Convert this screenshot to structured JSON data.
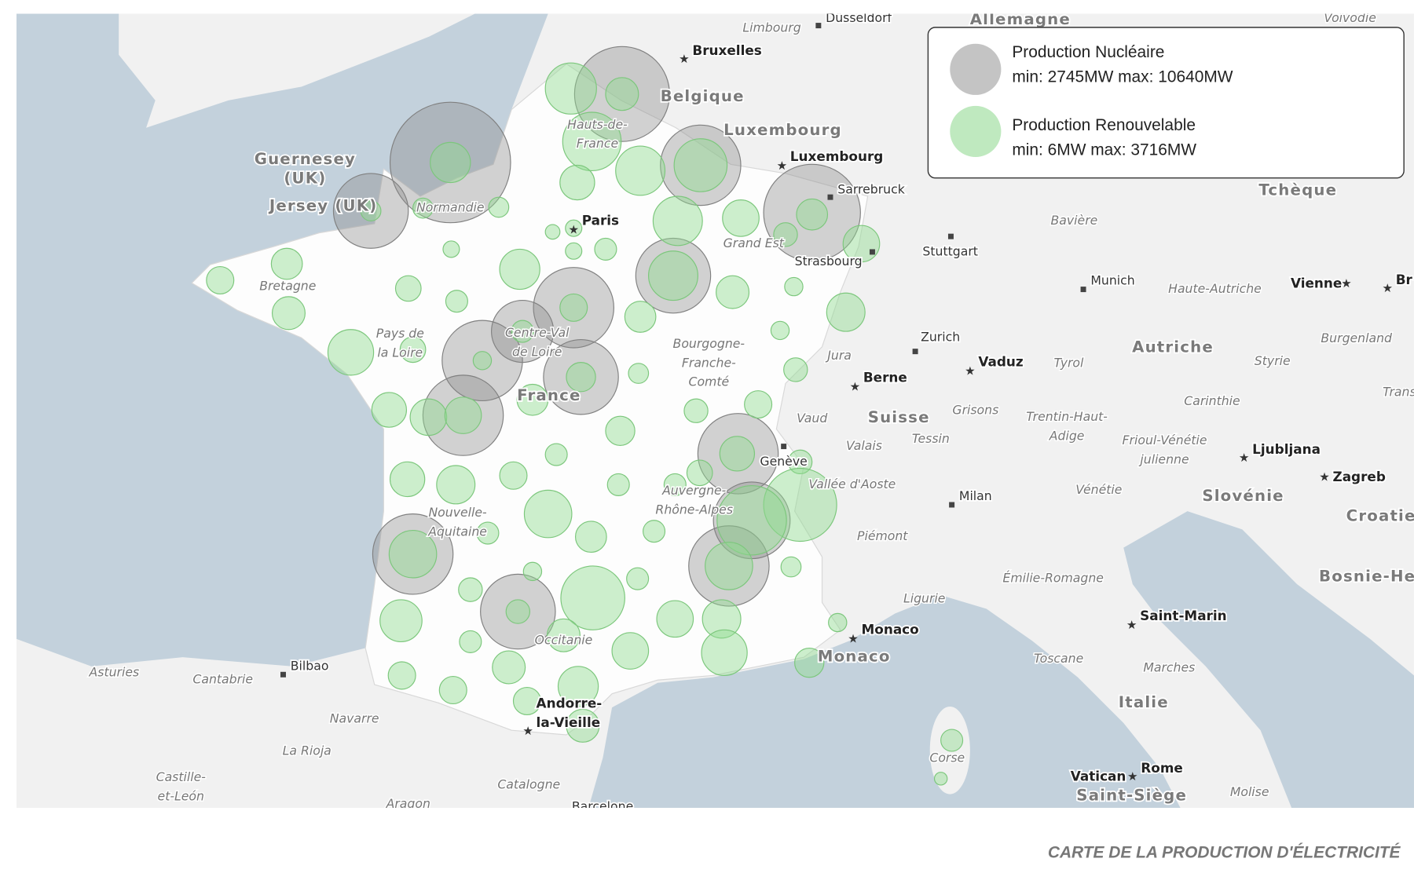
{
  "legend": {
    "items": [
      {
        "name": "Production Nucléaire",
        "range": "min: 2745MW max: 10640MW"
      },
      {
        "name": "Production Renouvelable",
        "range": "min: 6MW max: 3716MW"
      }
    ]
  },
  "caption": "CARTE DE LA PRODUCTION D'ÉLECTRICITÉ",
  "map": {
    "countries": [
      [
        "Allemagne"
      ],
      [
        "Belgique"
      ],
      [
        "Luxembourg"
      ],
      [
        "France"
      ],
      [
        "Suisse"
      ],
      [
        "Autriche"
      ],
      [
        "Tchèque"
      ],
      [
        "Italie"
      ],
      [
        "Slovénie"
      ],
      [
        "Croatie"
      ],
      [
        "Bosnie-He"
      ],
      [
        "Monaco"
      ],
      [
        "Saint-Siège"
      ],
      [
        "Guernesey",
        "(UK)"
      ],
      [
        "Jersey (UK)"
      ]
    ],
    "capitals": [
      [
        "Bruxelles"
      ],
      [
        "Luxembourg"
      ],
      [
        "Paris"
      ],
      [
        "Berne"
      ],
      [
        "Vaduz"
      ],
      [
        "Ljubljana"
      ],
      [
        "Zagreb"
      ],
      [
        "Vienne"
      ],
      [
        "Monaco"
      ],
      [
        "Saint-Marin"
      ],
      [
        "Rome"
      ],
      [
        "Vatican"
      ],
      [
        "Andorre-",
        "la-Vieille"
      ],
      [
        "Br"
      ]
    ],
    "cities": [
      [
        "Düsseldorf"
      ],
      [
        "Sarrebruck"
      ],
      [
        "Strasbourg"
      ],
      [
        "Stuttgart"
      ],
      [
        "Munich"
      ],
      [
        "Zurich"
      ],
      [
        "Genève"
      ],
      [
        "Milan"
      ],
      [
        "Bilbao"
      ],
      [
        "Barcelone"
      ]
    ],
    "regions": [
      [
        "Limbourg"
      ],
      [
        "Hauts-de-",
        "France"
      ],
      [
        "Normandie"
      ],
      [
        "Bretagne"
      ],
      [
        "Grand Est"
      ],
      [
        "Pays de",
        "la Loire"
      ],
      [
        "Centre-Val",
        "de Loire"
      ],
      [
        "Bourgogne-",
        "Franche-",
        "Comté"
      ],
      [
        "Bavière"
      ],
      [
        "Haute-Autriche"
      ],
      [
        "Jura"
      ],
      [
        "Vaud"
      ],
      [
        "Valais"
      ],
      [
        "Grisons"
      ],
      [
        "Tessin"
      ],
      [
        "Tyrol"
      ],
      [
        "Styrie"
      ],
      [
        "Burgenland"
      ],
      [
        "Carinthie"
      ],
      [
        "Trentin-Haut-",
        "Adige"
      ],
      [
        "Frioul-Vénétie",
        "julienne"
      ],
      [
        "Vénétie"
      ],
      [
        "Vallée d'Aoste"
      ],
      [
        "Auvergne-",
        "Rhône-Alpes"
      ],
      [
        "Nouvelle-",
        "Aquitaine"
      ],
      [
        "Piémont"
      ],
      [
        "Émilie-Romagne"
      ],
      [
        "Ligurie"
      ],
      [
        "Occitanie"
      ],
      [
        "Toscane"
      ],
      [
        "Marches"
      ],
      [
        "Asturies"
      ],
      [
        "Cantabrie"
      ],
      [
        "Navarre"
      ],
      [
        "La Rioja"
      ],
      [
        "Castille-",
        "et-León"
      ],
      [
        "Catalogne"
      ],
      [
        "Aragon"
      ],
      [
        "Corse"
      ],
      [
        "Molise"
      ],
      [
        "Voïvodie"
      ],
      [
        "Trans"
      ]
    ]
  }
}
